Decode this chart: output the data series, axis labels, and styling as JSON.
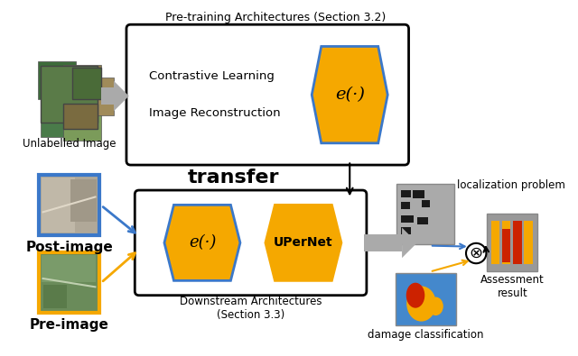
{
  "title": "Pre-training Architectures (Section 3.2)",
  "downstream_title": "Downstream Architectures\n(Section 3.3)",
  "transfer_text": "transfer",
  "localization_text": "localization problem",
  "damage_text": "damage classification",
  "assessment_text": "Assessment\nresult",
  "unlabelled_text": "Unlabelled Image",
  "post_text": "Post-image",
  "pre_text": "Pre-image",
  "encoder_text": "e(·)",
  "upernet_text": "UPerNet",
  "contrastive_text": "Contrastive Learning",
  "reconstruction_text": "Image Reconstruction",
  "gold_color": "#F5A800",
  "blue_border": "#3B78C9",
  "orange_border": "#F5A800",
  "bg_color": "#ffffff"
}
